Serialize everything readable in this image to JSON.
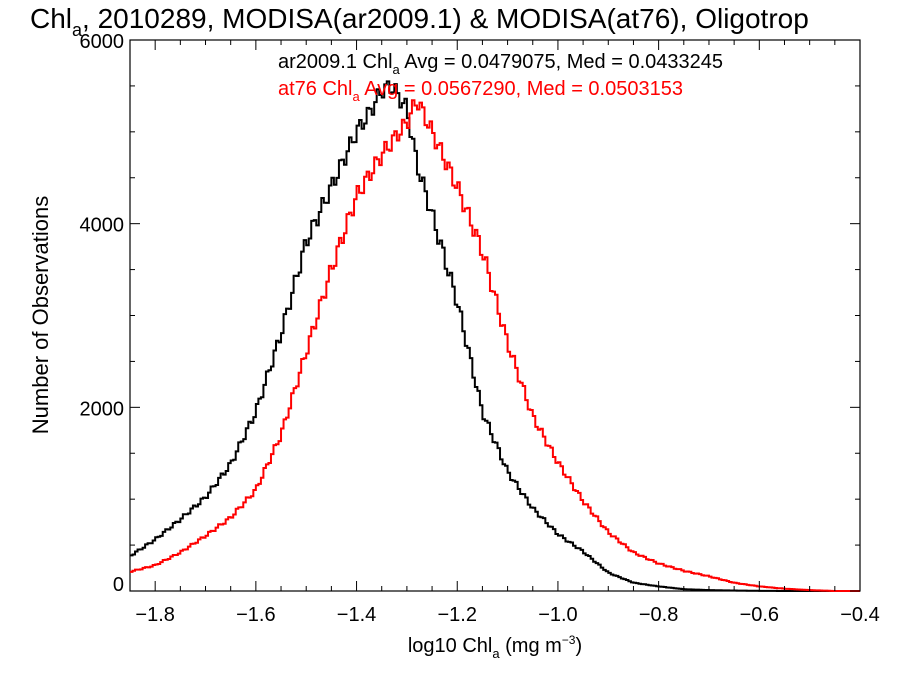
{
  "chart_data": {
    "type": "line",
    "title": {
      "pre": "Chl",
      "sub": "a",
      "post": ", 2010289, MODISA(ar2009.1) & MODISA(at76), Oligotrop"
    },
    "xlabel": {
      "pre": "log10 Chl",
      "sub": "a",
      "mid": " (mg m",
      "sup": "−3",
      "post": ")"
    },
    "ylabel": "Number of Observations",
    "xlim": [
      -1.85,
      -0.4
    ],
    "ylim": [
      0,
      6000
    ],
    "xticks": [
      -1.8,
      -1.6,
      -1.4,
      -1.2,
      -1.0,
      -0.8,
      -0.6,
      -0.4
    ],
    "xtick_labels": [
      "−1.8",
      "−1.6",
      "−1.4",
      "−1.2",
      "−1.0",
      "−0.8",
      "−0.6",
      "−0.4"
    ],
    "yticks": [
      0,
      2000,
      4000,
      6000
    ],
    "ytick_labels": [
      "0",
      "2000",
      "4000",
      "6000"
    ],
    "legend_position": "top-right",
    "annotations": [
      {
        "pre": "ar2009.1 Chl",
        "sub": "a",
        "post": " Avg = 0.0479075, Med = 0.0433245",
        "color": "#000000"
      },
      {
        "pre": "at76 Chl",
        "sub": "a",
        "post": " Avg = 0.0567290, Med = 0.0503153",
        "color": "#ff0000"
      }
    ],
    "series": [
      {
        "name": "ar2009.1",
        "color": "#000000",
        "x": [
          -1.85,
          -1.8,
          -1.75,
          -1.7,
          -1.65,
          -1.6,
          -1.55,
          -1.5,
          -1.45,
          -1.4,
          -1.375,
          -1.35,
          -1.33,
          -1.3,
          -1.28,
          -1.25,
          -1.2,
          -1.15,
          -1.1,
          -1.05,
          -1.0,
          -0.95,
          -0.9,
          -0.85,
          -0.8,
          -0.75,
          -0.7,
          -0.65,
          -0.6,
          -0.55,
          -0.5,
          -0.45,
          -0.4
        ],
        "y": [
          380,
          560,
          780,
          1020,
          1380,
          1950,
          2800,
          3800,
          4400,
          5000,
          5200,
          5450,
          5500,
          5250,
          4650,
          4100,
          3150,
          1950,
          1300,
          900,
          620,
          430,
          200,
          90,
          50,
          20,
          10,
          5,
          2,
          0,
          0,
          0,
          0
        ]
      },
      {
        "name": "at76",
        "color": "#ff0000",
        "x": [
          -1.85,
          -1.8,
          -1.75,
          -1.7,
          -1.65,
          -1.6,
          -1.55,
          -1.5,
          -1.45,
          -1.4,
          -1.35,
          -1.3,
          -1.28,
          -1.25,
          -1.2,
          -1.15,
          -1.1,
          -1.05,
          -1.0,
          -0.95,
          -0.9,
          -0.85,
          -0.8,
          -0.75,
          -0.7,
          -0.65,
          -0.6,
          -0.55,
          -0.5,
          -0.45,
          -0.4
        ],
        "y": [
          210,
          280,
          420,
          600,
          800,
          1100,
          1700,
          2600,
          3500,
          4300,
          4750,
          5100,
          5350,
          5000,
          4400,
          3700,
          2700,
          1900,
          1400,
          980,
          640,
          420,
          300,
          220,
          160,
          90,
          50,
          25,
          10,
          0,
          0
        ]
      }
    ]
  }
}
